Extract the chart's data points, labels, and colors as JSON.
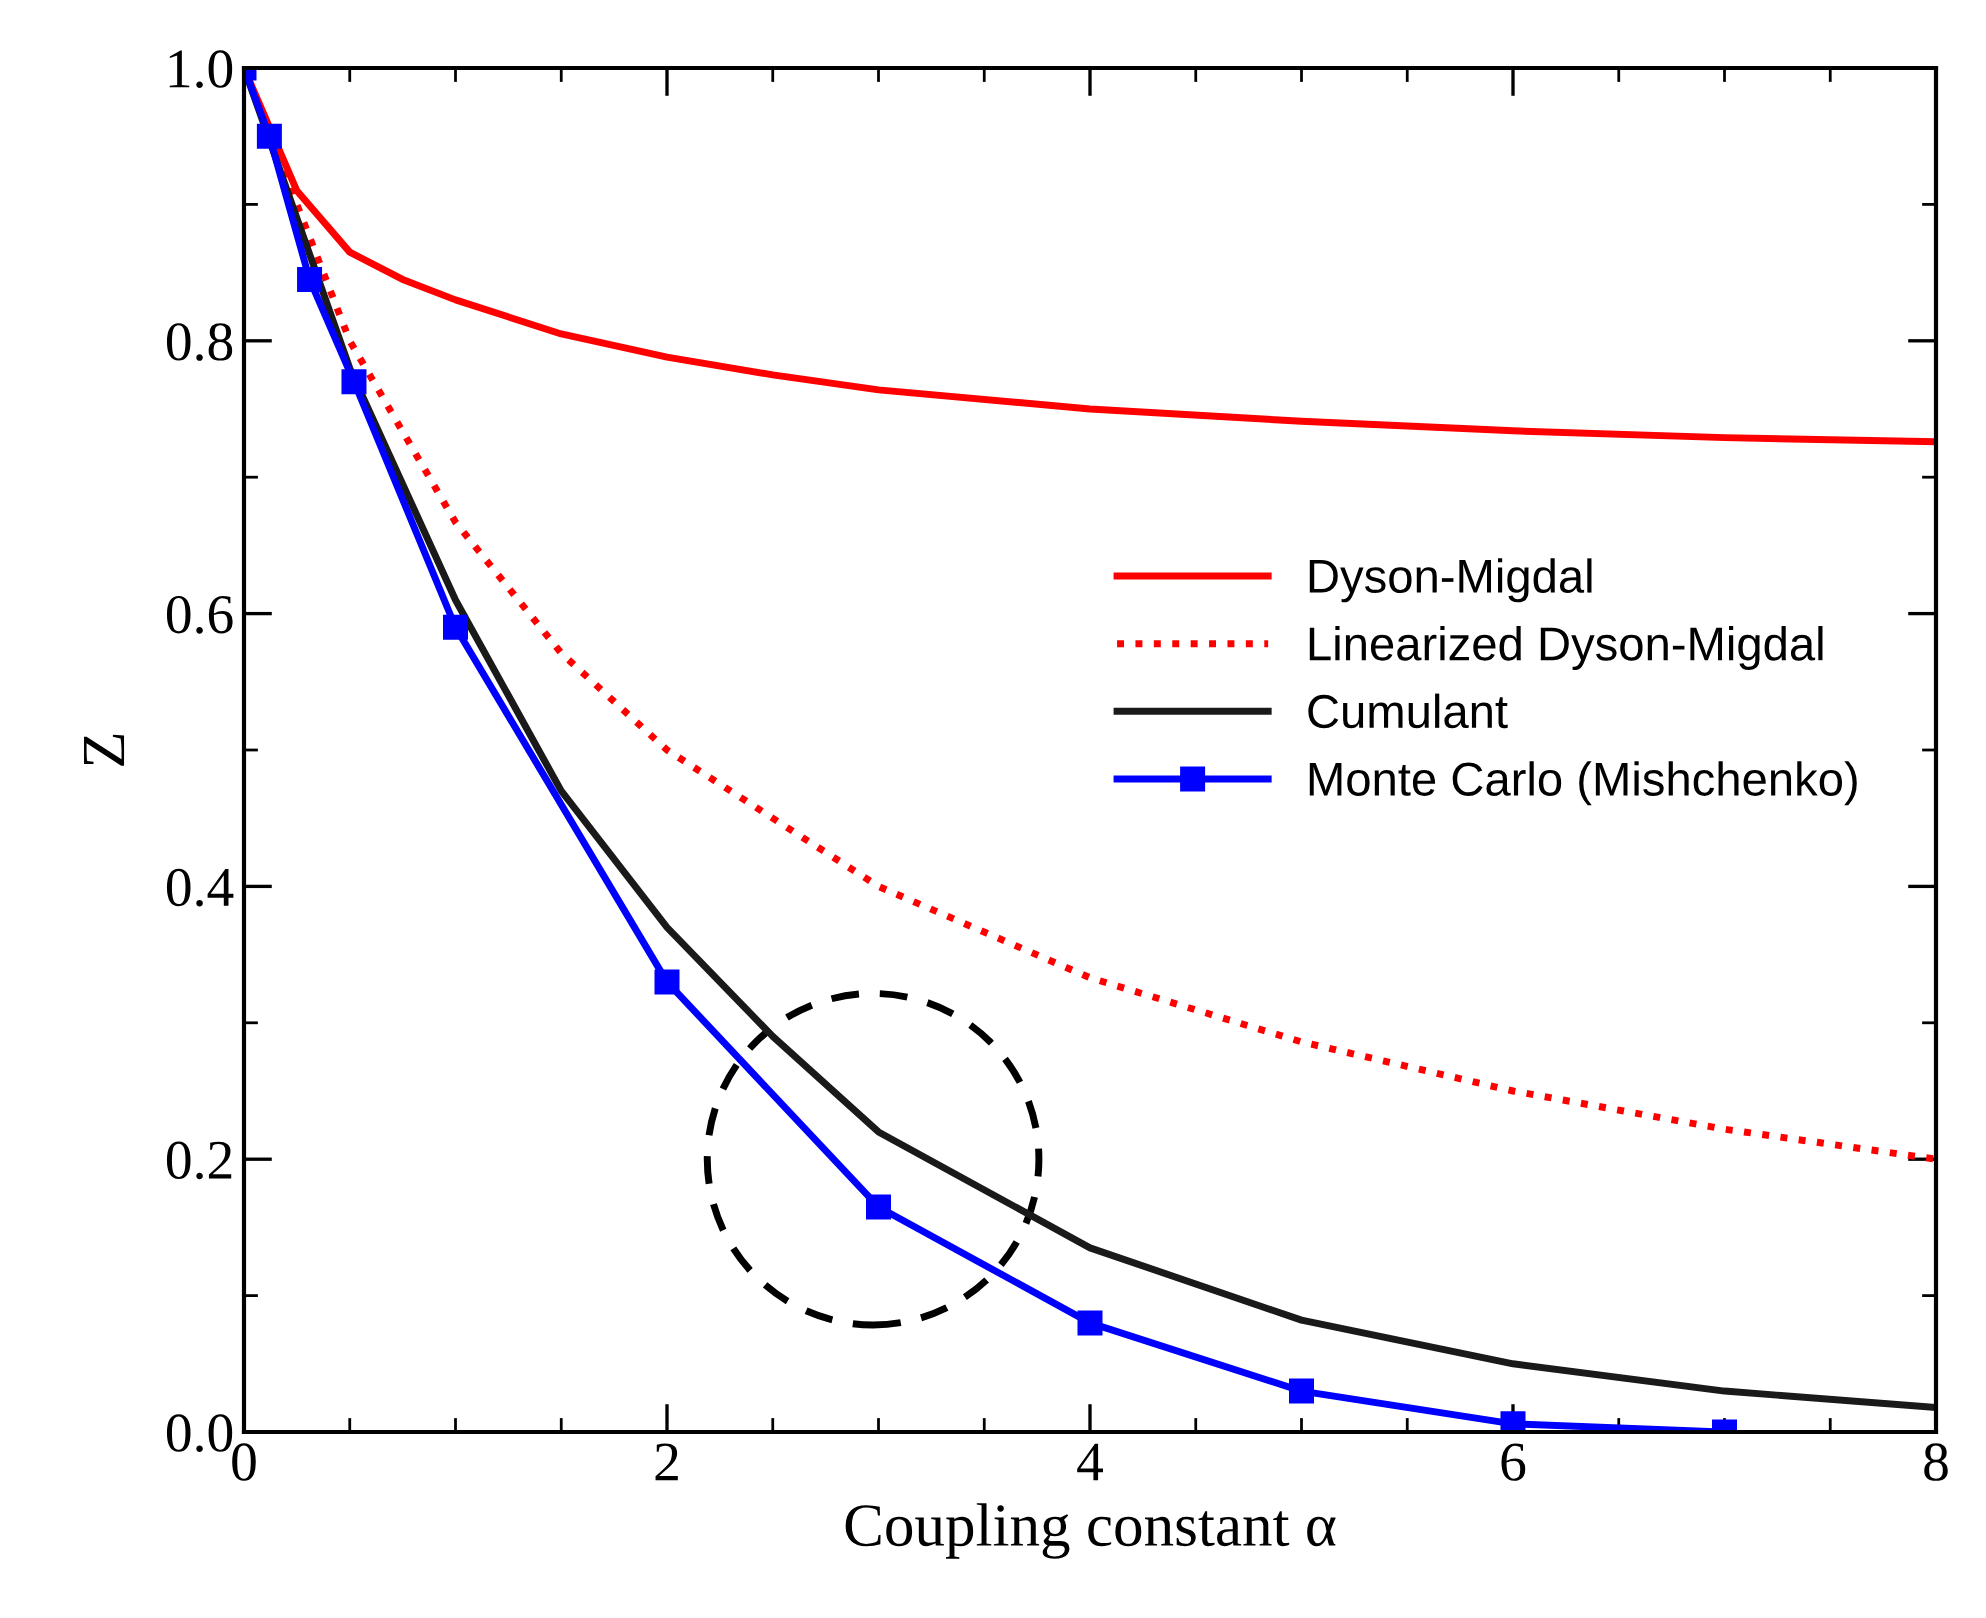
{
  "chart_data": {
    "type": "line",
    "xlabel": "Coupling constant α",
    "ylabel": "Z",
    "xlim": [
      0,
      8
    ],
    "ylim": [
      0,
      1
    ],
    "xticks": [
      0,
      2,
      4,
      6,
      8
    ],
    "yticks": [
      {
        "value": 0,
        "label": "0.0"
      },
      {
        "value": 0.2,
        "label": "0.2"
      },
      {
        "value": 0.4,
        "label": "0.4"
      },
      {
        "value": 0.6,
        "label": "0.6"
      },
      {
        "value": 0.8,
        "label": "0.8"
      },
      {
        "value": 1,
        "label": "1.0"
      }
    ],
    "grid": false,
    "legend": "right",
    "series": [
      {
        "name": "Dyson-Migdal",
        "color": "#ff0000",
        "line_style": "solid",
        "marker": "none",
        "x": [
          0,
          0.25,
          0.5,
          0.75,
          1,
          1.5,
          2,
          2.5,
          3,
          4,
          5,
          6,
          7,
          8
        ],
        "values": [
          1,
          0.91,
          0.865,
          0.845,
          0.83,
          0.805,
          0.788,
          0.775,
          0.764,
          0.75,
          0.741,
          0.734,
          0.729,
          0.726
        ]
      },
      {
        "name": "Linearized Dyson-Migdal",
        "color": "#ff0000",
        "line_style": "dotted",
        "marker": "none",
        "x": [
          0,
          0.5,
          1,
          1.5,
          2,
          3,
          4,
          5,
          6,
          7,
          8
        ],
        "values": [
          1,
          0.8,
          0.667,
          0.571,
          0.5,
          0.4,
          0.333,
          0.286,
          0.25,
          0.222,
          0.2
        ]
      },
      {
        "name": "Cumulant",
        "color": "#1a1a1a",
        "line_style": "solid",
        "marker": "none",
        "x": [
          0,
          0.5,
          1,
          1.5,
          2,
          2.5,
          3,
          4,
          5,
          6,
          7,
          8
        ],
        "values": [
          1,
          0.78,
          0.61,
          0.47,
          0.37,
          0.29,
          0.22,
          0.135,
          0.082,
          0.05,
          0.03,
          0.018
        ]
      },
      {
        "name": "Monte Carlo (Mishchenko)",
        "color": "#0000ff",
        "line_style": "solid",
        "marker": "square",
        "x": [
          0,
          0.12,
          0.31,
          0.52,
          1,
          2,
          3,
          4,
          5,
          6,
          7
        ],
        "values": [
          1,
          0.95,
          0.845,
          0.77,
          0.59,
          0.33,
          0.165,
          0.08,
          0.03,
          0.006,
          0.0
        ]
      }
    ]
  }
}
